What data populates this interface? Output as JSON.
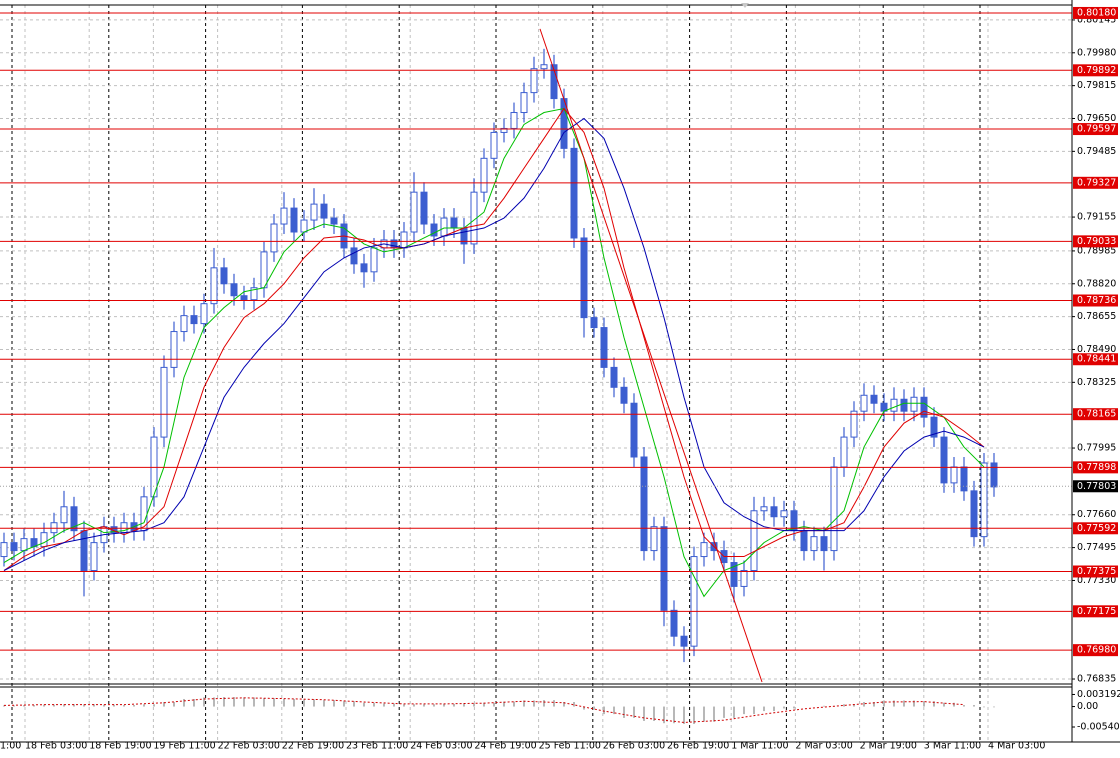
{
  "chart_data": {
    "type": "candlestick",
    "candle_color": "#3c5ed0",
    "open": [
      0.7745,
      0.7752,
      0.7748,
      0.7754,
      0.775,
      0.7757,
      0.7762,
      0.777,
      0.7758,
      0.7738,
      0.7752,
      0.776,
      0.7757,
      0.7762,
      0.7758,
      0.7775,
      0.7805,
      0.784,
      0.7858,
      0.7866,
      0.7862,
      0.7872,
      0.789,
      0.7882,
      0.7876,
      0.7874,
      0.788,
      0.7898,
      0.7912,
      0.792,
      0.7908,
      0.7914,
      0.7922,
      0.7915,
      0.7912,
      0.79,
      0.7892,
      0.7888,
      0.79,
      0.7904,
      0.79,
      0.7908,
      0.7928,
      0.7912,
      0.7906,
      0.7915,
      0.791,
      0.7902,
      0.7928,
      0.7945,
      0.7958,
      0.796,
      0.7968,
      0.7978,
      0.799,
      0.7992,
      0.7975,
      0.795,
      0.7905,
      0.7865,
      0.786,
      0.784,
      0.783,
      0.7822,
      0.7795,
      0.7748,
      0.776,
      0.7718,
      0.7705,
      0.77,
      0.7745,
      0.7752,
      0.7748,
      0.7742,
      0.773,
      0.7738,
      0.7768,
      0.777,
      0.7765,
      0.7768,
      0.7758,
      0.7748,
      0.7755,
      0.7748,
      0.779,
      0.7805,
      0.7818,
      0.7826,
      0.7822,
      0.7818,
      0.7824,
      0.7818,
      0.7825,
      0.7815,
      0.7805,
      0.7782,
      0.779,
      0.7778,
      0.7755,
      0.7792
    ],
    "high": [
      0.7757,
      0.7757,
      0.7759,
      0.7759,
      0.7762,
      0.7767,
      0.7778,
      0.7775,
      0.7763,
      0.7757,
      0.7765,
      0.7765,
      0.7767,
      0.7767,
      0.778,
      0.781,
      0.7846,
      0.7863,
      0.7871,
      0.7871,
      0.7877,
      0.79,
      0.7895,
      0.7887,
      0.7881,
      0.7885,
      0.7903,
      0.7917,
      0.7928,
      0.7925,
      0.7919,
      0.793,
      0.7927,
      0.792,
      0.7917,
      0.7905,
      0.7897,
      0.7905,
      0.7909,
      0.7909,
      0.7913,
      0.7938,
      0.7933,
      0.7917,
      0.792,
      0.792,
      0.7915,
      0.7935,
      0.795,
      0.7963,
      0.7965,
      0.7973,
      0.7983,
      0.7996,
      0.8,
      0.7997,
      0.798,
      0.7955,
      0.791,
      0.787,
      0.7865,
      0.7845,
      0.7835,
      0.7827,
      0.78,
      0.7765,
      0.7765,
      0.7723,
      0.771,
      0.775,
      0.7757,
      0.7757,
      0.7753,
      0.7747,
      0.7743,
      0.7775,
      0.7775,
      0.7775,
      0.7773,
      0.7773,
      0.7763,
      0.776,
      0.776,
      0.7795,
      0.781,
      0.7823,
      0.7832,
      0.7831,
      0.7827,
      0.783,
      0.7829,
      0.783,
      0.783,
      0.782,
      0.781,
      0.7795,
      0.7795,
      0.7783,
      0.7797,
      0.7797
    ],
    "low": [
      0.774,
      0.7743,
      0.7743,
      0.7745,
      0.7745,
      0.7752,
      0.7757,
      0.7753,
      0.7725,
      0.7733,
      0.7747,
      0.7752,
      0.7752,
      0.7753,
      0.7753,
      0.777,
      0.78,
      0.7835,
      0.7853,
      0.7857,
      0.7857,
      0.7867,
      0.7877,
      0.7871,
      0.7869,
      0.7869,
      0.7875,
      0.7893,
      0.7907,
      0.7903,
      0.7903,
      0.7909,
      0.791,
      0.7907,
      0.7895,
      0.7887,
      0.788,
      0.7883,
      0.7895,
      0.7895,
      0.7895,
      0.7903,
      0.7907,
      0.7901,
      0.7901,
      0.7905,
      0.7892,
      0.7897,
      0.7923,
      0.794,
      0.7953,
      0.7955,
      0.7963,
      0.7973,
      0.7985,
      0.797,
      0.7945,
      0.79,
      0.7855,
      0.7855,
      0.7835,
      0.7825,
      0.7817,
      0.779,
      0.7743,
      0.7743,
      0.771,
      0.77,
      0.7692,
      0.7695,
      0.774,
      0.7743,
      0.7737,
      0.7722,
      0.7725,
      0.7733,
      0.7763,
      0.776,
      0.776,
      0.7753,
      0.7743,
      0.7743,
      0.7738,
      0.7743,
      0.7785,
      0.78,
      0.7813,
      0.7817,
      0.7813,
      0.7813,
      0.7813,
      0.7813,
      0.781,
      0.78,
      0.7777,
      0.7777,
      0.7773,
      0.775,
      0.775,
      0.7775
    ],
    "close": [
      0.7752,
      0.7748,
      0.7754,
      0.775,
      0.7757,
      0.7762,
      0.777,
      0.7758,
      0.7738,
      0.7752,
      0.776,
      0.7757,
      0.7762,
      0.7758,
      0.7775,
      0.7805,
      0.784,
      0.7858,
      0.7866,
      0.7862,
      0.7872,
      0.789,
      0.7882,
      0.7876,
      0.7874,
      0.788,
      0.7898,
      0.7912,
      0.792,
      0.7908,
      0.7914,
      0.7922,
      0.7915,
      0.7912,
      0.79,
      0.7892,
      0.7888,
      0.79,
      0.7904,
      0.79,
      0.7908,
      0.7928,
      0.7912,
      0.7906,
      0.7915,
      0.791,
      0.7902,
      0.7928,
      0.7945,
      0.7958,
      0.796,
      0.7968,
      0.7978,
      0.799,
      0.7992,
      0.7975,
      0.795,
      0.7905,
      0.7865,
      0.786,
      0.784,
      0.783,
      0.7822,
      0.7795,
      0.7748,
      0.776,
      0.7718,
      0.7705,
      0.77,
      0.7745,
      0.7752,
      0.7748,
      0.7742,
      0.773,
      0.7738,
      0.7768,
      0.777,
      0.7765,
      0.7768,
      0.7758,
      0.7748,
      0.7755,
      0.7748,
      0.779,
      0.7805,
      0.7818,
      0.7826,
      0.7822,
      0.7818,
      0.7824,
      0.7818,
      0.7825,
      0.7815,
      0.7805,
      0.7782,
      0.779,
      0.7778,
      0.7755,
      0.7792,
      0.778
    ],
    "ma_lines": [
      {
        "color": "#00c000",
        "values": [
          0.7742,
          0.7748,
          0.7752,
          0.7758,
          0.7762,
          0.7757,
          0.7758,
          0.7762,
          0.779,
          0.7835,
          0.786,
          0.787,
          0.7878,
          0.788,
          0.7898,
          0.7908,
          0.7912,
          0.791,
          0.7902,
          0.7898,
          0.79,
          0.7905,
          0.791,
          0.791,
          0.7918,
          0.7945,
          0.7962,
          0.7968,
          0.797,
          0.7945,
          0.7895,
          0.7855,
          0.782,
          0.7785,
          0.7745,
          0.7725,
          0.7738,
          0.7742,
          0.7752,
          0.7758,
          0.776,
          0.7758,
          0.7768,
          0.78,
          0.7818,
          0.7822,
          0.7822,
          0.7815,
          0.78,
          0.779
        ]
      },
      {
        "color": "#e00000",
        "values": [
          0.7738,
          0.7745,
          0.775,
          0.7752,
          0.7758,
          0.776,
          0.7756,
          0.776,
          0.777,
          0.78,
          0.783,
          0.785,
          0.7865,
          0.7872,
          0.7882,
          0.7895,
          0.7905,
          0.7906,
          0.7904,
          0.79,
          0.79,
          0.7902,
          0.7906,
          0.791,
          0.7912,
          0.7925,
          0.794,
          0.7955,
          0.797,
          0.7958,
          0.793,
          0.789,
          0.7855,
          0.782,
          0.7785,
          0.7755,
          0.7745,
          0.7745,
          0.775,
          0.7755,
          0.7758,
          0.7758,
          0.7762,
          0.778,
          0.78,
          0.7812,
          0.7818,
          0.7815,
          0.7808,
          0.78
        ]
      },
      {
        "color": "#0000b0",
        "values": [
          0.7738,
          0.7743,
          0.7748,
          0.7752,
          0.7754,
          0.7756,
          0.7757,
          0.7758,
          0.7762,
          0.7775,
          0.78,
          0.7825,
          0.784,
          0.7852,
          0.7862,
          0.7875,
          0.7888,
          0.7895,
          0.79,
          0.7902,
          0.79,
          0.7902,
          0.7906,
          0.7908,
          0.791,
          0.7915,
          0.7925,
          0.794,
          0.7958,
          0.7965,
          0.7955,
          0.793,
          0.79,
          0.7865,
          0.7825,
          0.779,
          0.7772,
          0.7765,
          0.776,
          0.7758,
          0.7758,
          0.7758,
          0.7758,
          0.7768,
          0.7785,
          0.7798,
          0.7805,
          0.7808,
          0.7805,
          0.78
        ]
      }
    ],
    "trendline": {
      "color": "#e00000",
      "values": [
        0.801,
        0.7682
      ]
    },
    "ylim": [
      0.76815,
      0.8022
    ],
    "yticks": [
      0.80145,
      {
        "value": 0.7998,
        "label": "0.79980"
      },
      0.79815,
      {
        "value": 0.7965,
        "label": "0.79650"
      },
      0.79485,
      0.79155,
      0.78985,
      {
        "value": 0.7882,
        "label": "0.78820"
      },
      0.78655,
      {
        "value": 0.7849,
        "label": "0.78490"
      },
      0.78325,
      0.77995,
      {
        "value": 0.7766,
        "label": "0.77660"
      },
      0.77495,
      {
        "value": 0.7733,
        "label": "0.77330"
      },
      0.76835
    ],
    "grid": true,
    "levels": [
      {
        "value": 0.8018,
        "label": "0.80180"
      },
      0.79892,
      0.79597,
      0.79327,
      0.79033,
      0.78736,
      0.78441,
      0.78165,
      0.77898,
      0.77592,
      0.77375,
      0.77175,
      {
        "value": 0.7698,
        "label": "0.76980"
      }
    ],
    "level_color": "#e00000",
    "last_price": 0.77803,
    "xlabels": [
      "1:00",
      "18 Feb 03:00",
      "18 Feb 19:00",
      "19 Feb 11:00",
      "22 Feb 03:00",
      "22 Feb 19:00",
      "23 Feb 11:00",
      "24 Feb 03:00",
      "24 Feb 19:00",
      "25 Feb 11:00",
      "26 Feb 03:00",
      "26 Feb 19:00",
      "1 Mar 11:00",
      "2 Mar 03:00",
      "2 Mar 19:00",
      "3 Mar 11:00",
      "4 Mar 03:00"
    ],
    "oscillator": {
      "histogram_color": "#b8b8b8",
      "signal_color": "#d00000",
      "histogram": [
        0.0003,
        0.0004,
        0.0005,
        0.0006,
        0.0006,
        0.0005,
        0.0004,
        0.0006,
        0.0012,
        0.002,
        0.0024,
        0.0025,
        0.0024,
        0.0022,
        0.002,
        0.0019,
        0.0017,
        0.0014,
        0.001,
        0.0008,
        0.0006,
        0.0006,
        0.0007,
        0.0008,
        0.001,
        0.0013,
        0.0016,
        0.0017,
        0.0012,
        -0.0008,
        -0.002,
        -0.003,
        -0.0038,
        -0.0044,
        -0.0046,
        -0.004,
        -0.003,
        -0.002,
        -0.0012,
        -0.0005,
        0,
        0.0002,
        0.0006,
        0.0012,
        0.0016,
        0.0016,
        0.0014,
        0.001,
        0.0004,
        -0.0002
      ],
      "signal": [
        0.0003,
        0.0005,
        0.0005,
        0.0005,
        0.001,
        0.002,
        0.0023,
        0.0021,
        0.0018,
        0.0012,
        0.0007,
        0.0007,
        0.0009,
        0.0014,
        0.001,
        -0.0012,
        -0.003,
        -0.0042,
        -0.0036,
        -0.002,
        -0.0006,
        0.0003,
        0.0012,
        0.0013,
        0.0005
      ],
      "ylim": [
        -0.0091,
        0.0049
      ],
      "yticks": [
        0.003192,
        {
          "value": 0,
          "label": "0.00"
        },
        -0.005401
      ]
    }
  }
}
